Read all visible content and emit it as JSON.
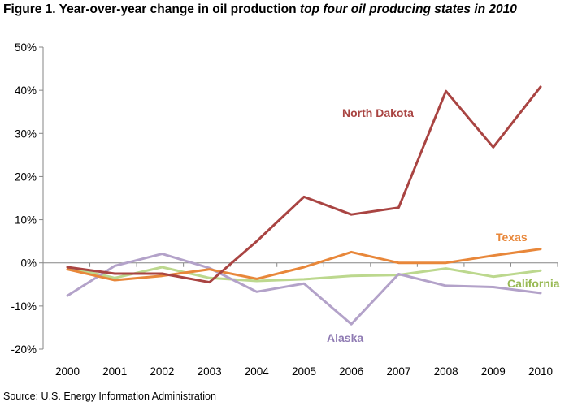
{
  "title": {
    "lead": "Figure 1.  Year-over-year change in oil production ",
    "italic_part": "top four oil producing states in 2010"
  },
  "source": "Source:  U.S. Energy Information Administration",
  "chart_data": {
    "type": "line",
    "title": "Figure 1.  Year-over-year change in oil production top four oil producing states in 2010",
    "xlabel": "",
    "ylabel": "",
    "x": [
      "2000",
      "2001",
      "2002",
      "2003",
      "2004",
      "2005",
      "2006",
      "2007",
      "2008",
      "2009",
      "2010"
    ],
    "ylim": [
      -20,
      50
    ],
    "yticks": [
      -20,
      -10,
      0,
      10,
      20,
      30,
      40,
      50
    ],
    "ytick_labels": [
      "-20%",
      "-10%",
      "0%",
      "10%",
      "20%",
      "30%",
      "40%",
      "50%"
    ],
    "grid": false,
    "legend": "direct labels on lines",
    "series": [
      {
        "name": "North Dakota",
        "color": "#a94442",
        "values": [
          -1.0,
          -2.5,
          -2.5,
          -4.5,
          5.0,
          15.3,
          11.2,
          12.8,
          39.8,
          26.8,
          40.8
        ]
      },
      {
        "name": "Texas",
        "color": "#e8873a",
        "values": [
          -1.5,
          -4.0,
          -3.0,
          -1.5,
          -3.7,
          -1.0,
          2.5,
          0.0,
          0.0,
          1.7,
          3.2
        ]
      },
      {
        "name": "California",
        "color": "#bcd88e",
        "values": [
          -1.0,
          -3.5,
          -1.0,
          -3.5,
          -4.2,
          -3.8,
          -3.0,
          -2.8,
          -1.3,
          -3.2,
          -1.8
        ]
      },
      {
        "name": "Alaska",
        "color": "#b3a2c9",
        "values": [
          -7.6,
          -0.7,
          2.1,
          -1.2,
          -6.7,
          -4.8,
          -14.2,
          -2.6,
          -5.3,
          -5.6,
          -7.0
        ]
      }
    ]
  }
}
